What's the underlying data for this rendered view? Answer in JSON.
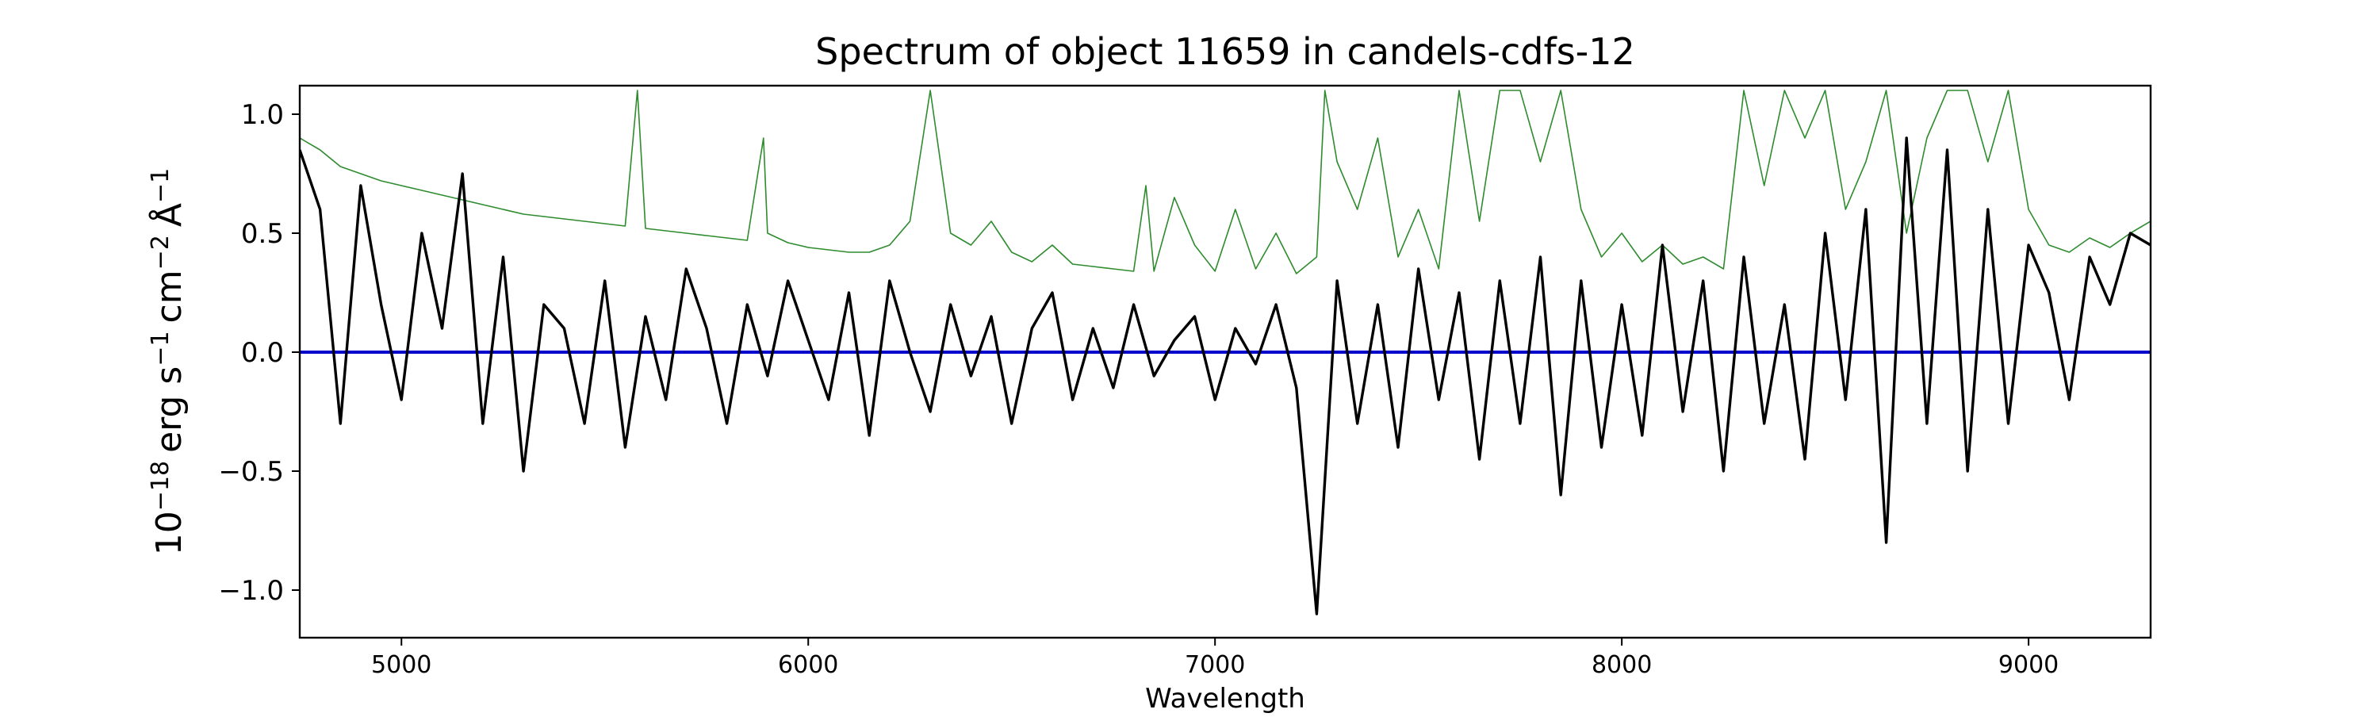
{
  "chart_data": {
    "type": "line",
    "title": "Spectrum of object 11659 in candels-cdfs-12",
    "xlabel": "Wavelength",
    "ylabel_parts": {
      "base": "10",
      "exp1": "−18",
      "erg": "erg s",
      "exp2": "−1",
      "cm": "cm",
      "exp3": "−2",
      "ang": "Å",
      "exp4": "−1"
    },
    "xlim": [
      4750,
      9300
    ],
    "ylim": [
      -1.2,
      1.12
    ],
    "xticks": [
      5000,
      6000,
      7000,
      8000,
      9000
    ],
    "xtick_labels": [
      "5000",
      "6000",
      "7000",
      "8000",
      "9000"
    ],
    "yticks": [
      -1.0,
      -0.5,
      0.0,
      0.5,
      1.0
    ],
    "ytick_labels": [
      "−1.0",
      "−0.5",
      "0.0",
      "0.5",
      "1.0"
    ],
    "grid": false,
    "colors": {
      "flux": "#000000",
      "error": "#2e8b2e",
      "zero": "#0000cc"
    },
    "series": [
      {
        "key": "flux",
        "x": [
          4750,
          4800,
          4850,
          4900,
          4950,
          5000,
          5050,
          5100,
          5150,
          5200,
          5250,
          5300,
          5350,
          5400,
          5450,
          5500,
          5550,
          5600,
          5650,
          5700,
          5750,
          5800,
          5850,
          5900,
          5950,
          6000,
          6050,
          6100,
          6150,
          6200,
          6250,
          6300,
          6350,
          6400,
          6450,
          6500,
          6550,
          6600,
          6650,
          6700,
          6750,
          6800,
          6850,
          6900,
          6950,
          7000,
          7050,
          7100,
          7150,
          7200,
          7250,
          7300,
          7350,
          7400,
          7450,
          7500,
          7550,
          7600,
          7650,
          7700,
          7750,
          7800,
          7850,
          7900,
          7950,
          8000,
          8050,
          8100,
          8150,
          8200,
          8250,
          8300,
          8350,
          8400,
          8450,
          8500,
          8550,
          8600,
          8650,
          8700,
          8750,
          8800,
          8850,
          8900,
          8950,
          9000,
          9050,
          9100,
          9150,
          9200,
          9250,
          9300
        ],
        "y": [
          0.85,
          0.6,
          -0.3,
          0.7,
          0.2,
          -0.2,
          0.5,
          0.1,
          0.75,
          -0.3,
          0.4,
          -0.5,
          0.2,
          0.1,
          -0.3,
          0.3,
          -0.4,
          0.15,
          -0.2,
          0.35,
          0.1,
          -0.3,
          0.2,
          -0.1,
          0.3,
          0.05,
          -0.2,
          0.25,
          -0.35,
          0.3,
          0.0,
          -0.25,
          0.2,
          -0.1,
          0.15,
          -0.3,
          0.1,
          0.25,
          -0.2,
          0.1,
          -0.15,
          0.2,
          -0.1,
          0.05,
          0.15,
          -0.2,
          0.1,
          -0.05,
          0.2,
          -0.15,
          -1.1,
          0.3,
          -0.3,
          0.2,
          -0.4,
          0.35,
          -0.2,
          0.25,
          -0.45,
          0.3,
          -0.3,
          0.4,
          -0.6,
          0.3,
          -0.4,
          0.2,
          -0.35,
          0.45,
          -0.25,
          0.3,
          -0.5,
          0.4,
          -0.3,
          0.2,
          -0.45,
          0.5,
          -0.2,
          0.6,
          -0.8,
          0.9,
          -0.3,
          0.85,
          -0.5,
          0.6,
          -0.3,
          0.45,
          0.25,
          -0.2,
          0.4,
          0.2,
          0.5,
          0.45
        ]
      },
      {
        "key": "error",
        "x": [
          4750,
          4800,
          4850,
          4900,
          4950,
          5000,
          5050,
          5100,
          5150,
          5200,
          5250,
          5300,
          5350,
          5400,
          5450,
          5500,
          5550,
          5580,
          5600,
          5650,
          5700,
          5750,
          5800,
          5850,
          5890,
          5900,
          5950,
          6000,
          6050,
          6100,
          6150,
          6200,
          6250,
          6300,
          6350,
          6400,
          6450,
          6500,
          6550,
          6600,
          6650,
          6700,
          6750,
          6800,
          6830,
          6850,
          6900,
          6950,
          7000,
          7050,
          7100,
          7150,
          7200,
          7250,
          7270,
          7300,
          7350,
          7400,
          7450,
          7500,
          7550,
          7600,
          7650,
          7700,
          7750,
          7800,
          7850,
          7900,
          7950,
          8000,
          8050,
          8100,
          8150,
          8200,
          8250,
          8300,
          8350,
          8400,
          8450,
          8500,
          8550,
          8600,
          8650,
          8700,
          8750,
          8800,
          8850,
          8900,
          8950,
          9000,
          9050,
          9100,
          9150,
          9200,
          9250,
          9300
        ],
        "y": [
          0.9,
          0.85,
          0.78,
          0.75,
          0.72,
          0.7,
          0.68,
          0.66,
          0.64,
          0.62,
          0.6,
          0.58,
          0.57,
          0.56,
          0.55,
          0.54,
          0.53,
          1.1,
          0.52,
          0.51,
          0.5,
          0.49,
          0.48,
          0.47,
          0.9,
          0.5,
          0.46,
          0.44,
          0.43,
          0.42,
          0.42,
          0.45,
          0.55,
          1.1,
          0.5,
          0.45,
          0.55,
          0.42,
          0.38,
          0.45,
          0.37,
          0.36,
          0.35,
          0.34,
          0.7,
          0.34,
          0.65,
          0.45,
          0.34,
          0.6,
          0.35,
          0.5,
          0.33,
          0.4,
          1.1,
          0.8,
          0.6,
          0.9,
          0.4,
          0.6,
          0.35,
          1.1,
          0.55,
          1.1,
          1.1,
          0.8,
          1.1,
          0.6,
          0.4,
          0.5,
          0.38,
          0.45,
          0.37,
          0.4,
          0.35,
          1.1,
          0.7,
          1.1,
          0.9,
          1.1,
          0.6,
          0.8,
          1.1,
          0.5,
          0.9,
          1.1,
          1.1,
          0.8,
          1.1,
          0.6,
          0.45,
          0.42,
          0.48,
          0.44,
          0.5,
          0.55
        ]
      }
    ],
    "hlines": [
      0.0
    ]
  }
}
